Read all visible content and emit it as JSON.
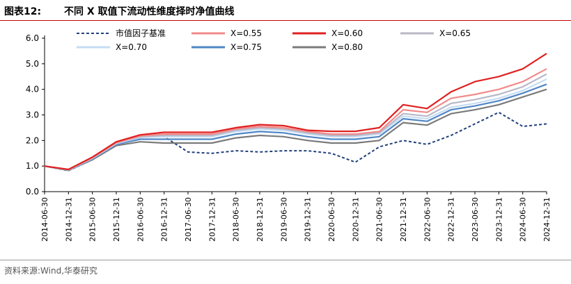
{
  "header": {
    "figure_label": "图表12:",
    "title": "不同 X 取值下流动性维度择时净值曲线"
  },
  "footer": {
    "source": "资料来源:Wind,华泰研究"
  },
  "chart_data": {
    "type": "line",
    "title": "不同 X 取值下流动性维度择时净值曲线",
    "xlabel": "",
    "ylabel": "",
    "ylim": [
      0,
      6
    ],
    "yticks": [
      "0.0",
      "1.0",
      "2.0",
      "3.0",
      "4.0",
      "5.0",
      "6.0"
    ],
    "x_ticks": [
      "2014-06-30",
      "2014-12-31",
      "2015-06-30",
      "2015-12-31",
      "2016-06-30",
      "2016-12-31",
      "2017-06-30",
      "2017-12-31",
      "2018-06-30",
      "2018-12-31",
      "2019-06-30",
      "2019-12-31",
      "2020-06-30",
      "2020-12-31",
      "2021-06-30",
      "2021-12-31",
      "2022-06-30",
      "2022-12-31",
      "2023-06-30",
      "2023-12-31",
      "2024-06-30",
      "2024-12-31"
    ],
    "grid": false,
    "legend_position": "top",
    "series": [
      {
        "name": "市值因子基准",
        "color": "#1f3f7a",
        "style": "dashed",
        "values": [
          1.0,
          0.82,
          1.25,
          1.9,
          2.15,
          2.15,
          1.55,
          1.5,
          1.6,
          1.55,
          1.6,
          1.6,
          1.5,
          1.15,
          1.75,
          2.0,
          1.85,
          2.2,
          2.65,
          3.1,
          2.55,
          2.65
        ]
      },
      {
        "name": "X=0.55",
        "color": "#f28a8a",
        "style": "solid",
        "values": [
          1.0,
          0.86,
          1.33,
          1.92,
          2.18,
          2.25,
          2.25,
          2.25,
          2.45,
          2.55,
          2.5,
          2.35,
          2.25,
          2.25,
          2.35,
          3.2,
          3.1,
          3.65,
          3.8,
          4.0,
          4.3,
          4.8
        ]
      },
      {
        "name": "X=0.60",
        "color": "#e02020",
        "style": "solid",
        "values": [
          1.0,
          0.87,
          1.35,
          1.95,
          2.22,
          2.32,
          2.32,
          2.32,
          2.5,
          2.62,
          2.58,
          2.4,
          2.36,
          2.36,
          2.5,
          3.4,
          3.25,
          3.9,
          4.3,
          4.5,
          4.8,
          5.4
        ]
      },
      {
        "name": "X=0.65",
        "color": "#b8b8c6",
        "style": "solid",
        "values": [
          1.0,
          0.86,
          1.32,
          1.9,
          2.15,
          2.2,
          2.2,
          2.2,
          2.4,
          2.5,
          2.45,
          2.3,
          2.2,
          2.2,
          2.3,
          3.05,
          2.95,
          3.45,
          3.6,
          3.8,
          4.1,
          4.6
        ]
      },
      {
        "name": "X=0.70",
        "color": "#c6dcf2",
        "style": "solid",
        "values": [
          1.0,
          0.85,
          1.3,
          1.88,
          2.12,
          2.15,
          2.15,
          2.15,
          2.35,
          2.45,
          2.4,
          2.25,
          2.15,
          2.15,
          2.25,
          2.95,
          2.85,
          3.3,
          3.45,
          3.65,
          3.95,
          4.4
        ]
      },
      {
        "name": "X=0.75",
        "color": "#4f86c6",
        "style": "solid",
        "values": [
          1.0,
          0.84,
          1.28,
          1.85,
          2.05,
          2.05,
          2.05,
          2.05,
          2.25,
          2.35,
          2.3,
          2.15,
          2.05,
          2.05,
          2.15,
          2.85,
          2.75,
          3.2,
          3.35,
          3.55,
          3.85,
          4.2
        ]
      },
      {
        "name": "X=0.80",
        "color": "#7a7a7a",
        "style": "solid",
        "values": [
          1.0,
          0.83,
          1.25,
          1.8,
          1.95,
          1.9,
          1.9,
          1.9,
          2.1,
          2.2,
          2.15,
          2.0,
          1.9,
          1.9,
          2.0,
          2.7,
          2.6,
          3.05,
          3.2,
          3.4,
          3.7,
          4.0
        ]
      }
    ]
  }
}
